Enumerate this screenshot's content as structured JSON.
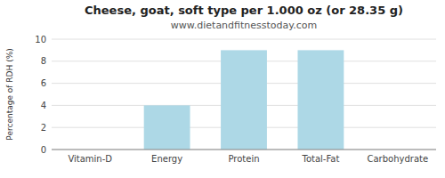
{
  "chart_data": {
    "type": "bar",
    "title": "Cheese, goat, soft type per 1.000 oz (or 28.35 g)",
    "subtitle": "www.dietandfitnesstoday.com",
    "categories": [
      "Vitamin-D",
      "Energy",
      "Protein",
      "Total-Fat",
      "Carbohydrate"
    ],
    "values": [
      0,
      4,
      9,
      9,
      0
    ],
    "color": "#add8e6",
    "ylabel": "Percentage of RDH (%)",
    "ylim": [
      0,
      10
    ],
    "yticks": [
      0,
      2,
      4,
      6,
      8,
      10
    ],
    "grid": true
  }
}
